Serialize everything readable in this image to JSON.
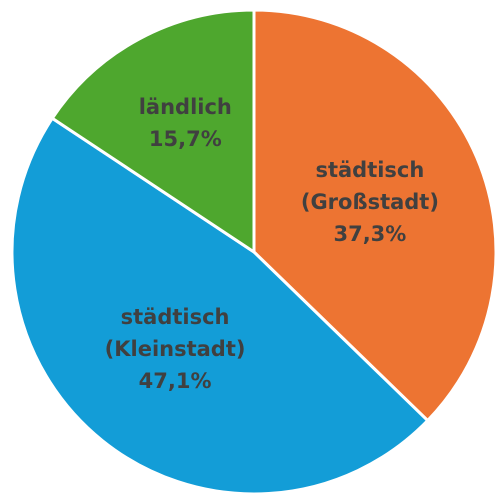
{
  "chart_data": {
    "type": "pie",
    "categories": [
      "städtisch (Großstadt)",
      "städtisch (Kleinstadt)",
      "ländlich"
    ],
    "values": [
      37.3,
      47.1,
      15.7
    ],
    "value_labels": [
      "37,3%",
      "47,1%",
      "15,7%"
    ],
    "colors": [
      "#ed7432",
      "#139dd7",
      "#4ea72e"
    ]
  }
}
